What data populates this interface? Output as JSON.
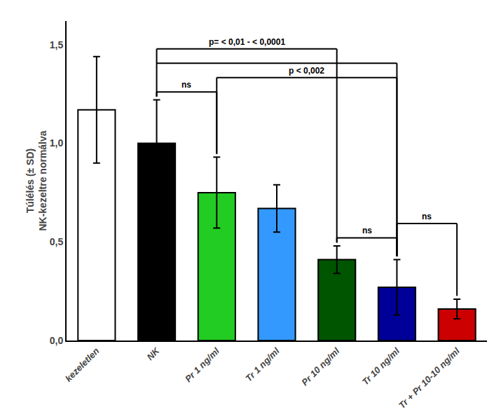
{
  "chart_data": {
    "type": "bar",
    "categories": [
      "kezeletlen",
      "NK",
      "Pr 1 ng/ml",
      "Tr 1 ng/ml",
      "Pr 10 ng/ml",
      "Tr 10 ng/ml",
      "Tr + Pr 10-10 ng/ml"
    ],
    "values": [
      1.17,
      1.0,
      0.75,
      0.67,
      0.41,
      0.27,
      0.16
    ],
    "errors": [
      0.27,
      0.22,
      0.18,
      0.12,
      0.07,
      0.14,
      0.05
    ],
    "colors": [
      "#ffffff",
      "#000000",
      "#22cc22",
      "#3399ff",
      "#005500",
      "#000099",
      "#cc0000"
    ],
    "ylabel": "Túlélés (± SD)\nNK-kezeltre normálva",
    "ylim": [
      0.0,
      1.62
    ],
    "yticks": [
      {
        "value": 0.0,
        "label": "0,0"
      },
      {
        "value": 0.5,
        "label": "0,5"
      },
      {
        "value": 1.0,
        "label": "1,0"
      },
      {
        "value": 1.5,
        "label": "1,5"
      }
    ],
    "grid": false,
    "annotations": [
      {
        "text": "p= < 0,01 - < 0,0001",
        "between": [
          "NK",
          "Pr 10 ng/ml",
          "Tr 10 ng/ml"
        ]
      },
      {
        "text": "ns",
        "between": [
          "NK",
          "Pr 1 ng/ml"
        ]
      },
      {
        "text": "p < 0,002",
        "between": [
          "Pr 1 ng/ml",
          "Tr 10 ng/ml"
        ]
      },
      {
        "text": "ns",
        "between": [
          "Pr 10 ng/ml",
          "Tr 10 ng/ml"
        ]
      },
      {
        "text": "ns",
        "between": [
          "Tr 10 ng/ml",
          "Tr + Pr 10-10 ng/ml"
        ]
      }
    ]
  }
}
